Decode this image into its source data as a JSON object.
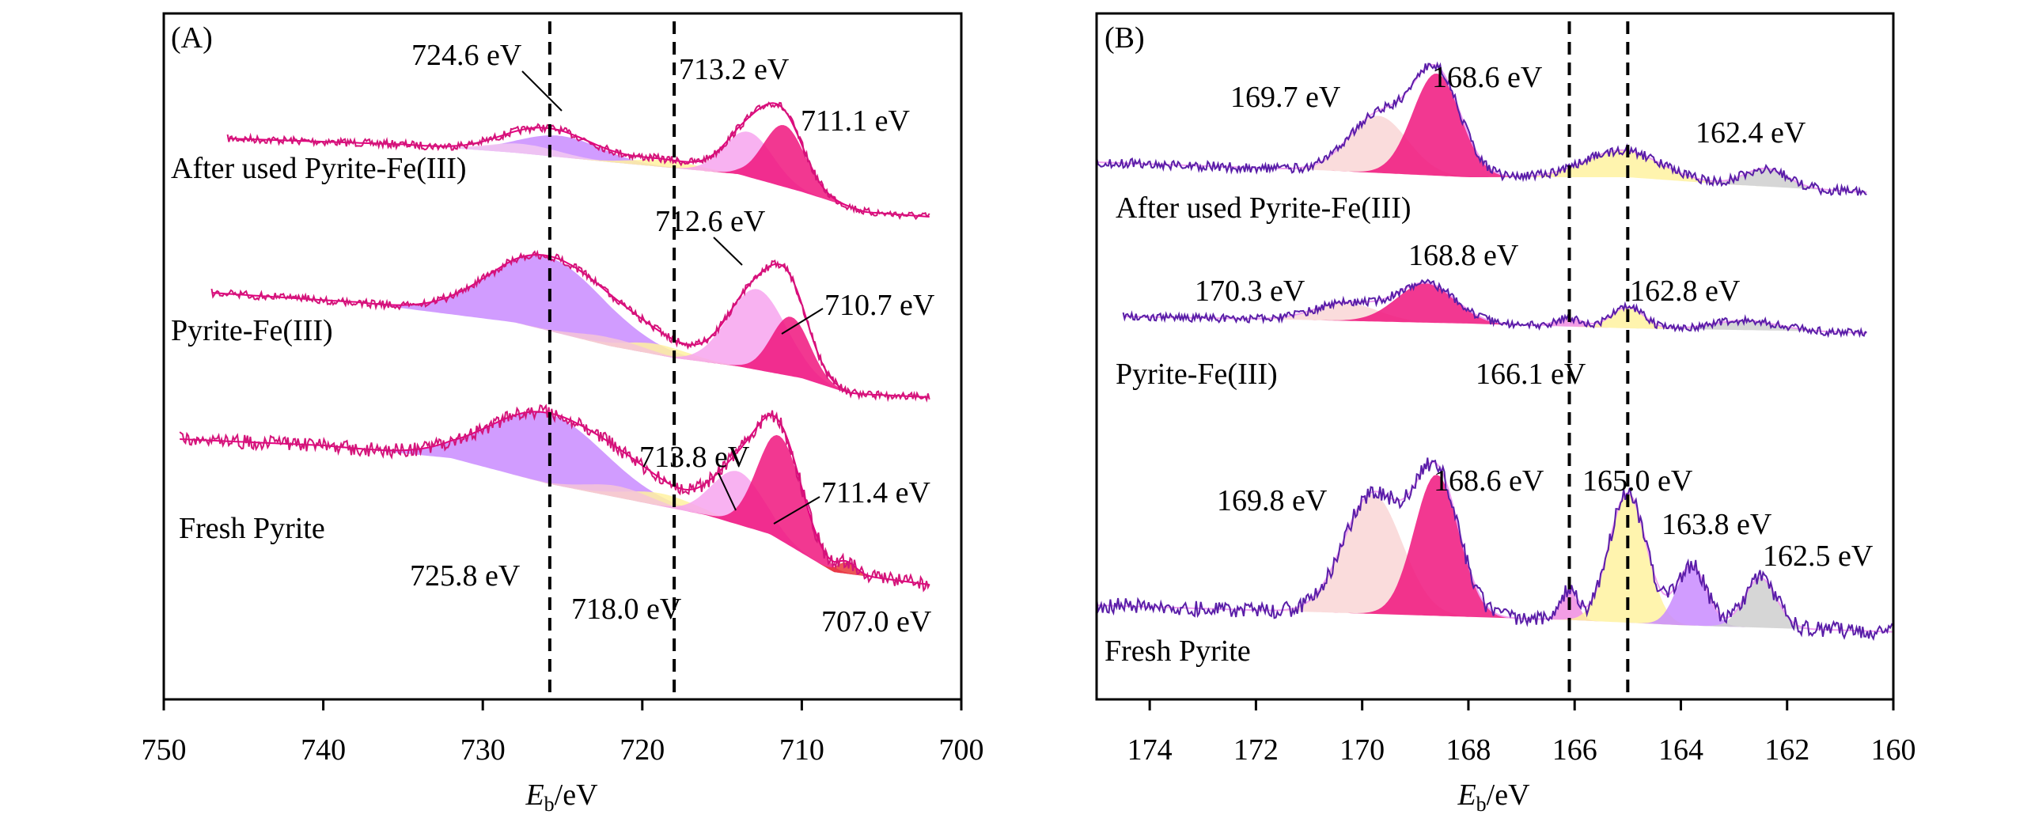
{
  "chart_data": [
    {
      "type": "line",
      "panel_label": "(A)",
      "xlabel_main": "E",
      "xlabel_sub": "b",
      "xlabel_unit": "/eV",
      "xlim": [
        750,
        700
      ],
      "x_ticks": [
        750,
        740,
        730,
        720,
        710,
        700
      ],
      "x_tick_labels": [
        "750",
        "740",
        "730",
        "720",
        "710",
        "700"
      ],
      "reference_lines_eV": [
        725.8,
        718.0
      ],
      "series": [
        {
          "name": "After used Pyrite-Fe(III)",
          "x_range": [
            746,
            702
          ],
          "baseline": [
            [
              746,
              0.0
            ],
            [
              735,
              0.05
            ],
            [
              728,
              0.12
            ],
            [
              722,
              0.2
            ],
            [
              718,
              0.25
            ],
            [
              714,
              0.3
            ],
            [
              710,
              0.45
            ],
            [
              706,
              0.62
            ],
            [
              702,
              0.66
            ]
          ],
          "components": [
            {
              "label": "",
              "center": 725.2,
              "height": 0.18,
              "width": 2.6,
              "color": "#c98bff"
            },
            {
              "label": "",
              "center": 727.5,
              "height": 0.08,
              "width": 2.2,
              "color": "#f3c9f1"
            },
            {
              "label": "",
              "center": 718.5,
              "height": 0.06,
              "width": 2.0,
              "color": "#fff2a0"
            },
            {
              "label": "",
              "center": 713.3,
              "height": 0.38,
              "width": 1.5,
              "color": "#f7a5ef"
            },
            {
              "label": "",
              "center": 711.1,
              "height": 0.52,
              "width": 1.3,
              "color": "#f0157e"
            }
          ]
        },
        {
          "name": "Pyrite-Fe(III)",
          "x_range": [
            747,
            702
          ],
          "baseline": [
            [
              747,
              0.0
            ],
            [
              738,
              0.08
            ],
            [
              728,
              0.25
            ],
            [
              722,
              0.45
            ],
            [
              718,
              0.55
            ],
            [
              714,
              0.62
            ],
            [
              710,
              0.72
            ],
            [
              707,
              0.85
            ],
            [
              702,
              0.88
            ]
          ],
          "components": [
            {
              "label": "",
              "center": 726.0,
              "height": 0.62,
              "width": 3.6,
              "color": "#c98bff"
            },
            {
              "label": "",
              "center": 719.0,
              "height": 0.09,
              "width": 2.0,
              "color": "#fff2a0"
            },
            {
              "label": "",
              "center": 722.0,
              "height": 0.07,
              "width": 2.0,
              "color": "#f6c6d7"
            },
            {
              "label": "",
              "center": 712.8,
              "height": 0.68,
              "width": 1.8,
              "color": "#f7a5ef"
            },
            {
              "label": "",
              "center": 710.7,
              "height": 0.5,
              "width": 1.2,
              "color": "#f0157e"
            }
          ]
        },
        {
          "name": "Fresh Pyrite",
          "x_range": [
            749,
            702
          ],
          "baseline": [
            [
              749,
              0.0
            ],
            [
              740,
              0.05
            ],
            [
              732,
              0.15
            ],
            [
              726,
              0.35
            ],
            [
              720,
              0.5
            ],
            [
              716,
              0.6
            ],
            [
              712,
              0.75
            ],
            [
              708,
              1.05
            ],
            [
              702,
              1.15
            ]
          ],
          "components": [
            {
              "label": "",
              "center": 726.0,
              "height": 0.55,
              "width": 3.6,
              "color": "#c98bff"
            },
            {
              "label": "",
              "center": 718.8,
              "height": 0.1,
              "width": 2.2,
              "color": "#fff2a0"
            },
            {
              "label": "",
              "center": 721.5,
              "height": 0.09,
              "width": 2.0,
              "color": "#f6c6d7"
            },
            {
              "label": "",
              "center": 714.0,
              "height": 0.42,
              "width": 1.6,
              "color": "#f7a5ef"
            },
            {
              "label": "",
              "center": 711.4,
              "height": 0.82,
              "width": 1.4,
              "color": "#f0157e"
            },
            {
              "label": "",
              "center": 707.2,
              "height": 0.09,
              "width": 0.6,
              "color": "#e83a3a"
            }
          ]
        }
      ],
      "annotations": [
        "724.6 eV",
        "713.2 eV",
        "711.1 eV",
        "712.6 eV",
        "710.7 eV",
        "713.8 eV",
        "711.4 eV",
        "725.8 eV",
        "718.0 eV",
        "707.0 eV"
      ]
    },
    {
      "type": "line",
      "panel_label": "(B)",
      "xlabel_main": "E",
      "xlabel_sub": "b",
      "xlabel_unit": "/eV",
      "xlim": [
        175,
        160
      ],
      "x_ticks": [
        174,
        172,
        170,
        168,
        166,
        164,
        162,
        160
      ],
      "x_tick_labels": [
        "174",
        "172",
        "170",
        "168",
        "166",
        "164",
        "162",
        "160"
      ],
      "reference_lines_eV": [
        166.1,
        165.0
      ],
      "series": [
        {
          "name": "After used Pyrite-Fe(III)",
          "x_range": [
            175,
            160.5
          ],
          "baseline": [
            [
              175,
              0.0
            ],
            [
              171,
              0.05
            ],
            [
              168,
              0.1
            ],
            [
              165,
              0.1
            ],
            [
              163,
              0.15
            ],
            [
              160.5,
              0.2
            ]
          ],
          "components": [
            {
              "label": "",
              "center": 169.7,
              "height": 0.38,
              "width": 0.55,
              "color": "#f9d6d6"
            },
            {
              "label": "",
              "center": 168.6,
              "height": 0.68,
              "width": 0.45,
              "color": "#f0157e"
            },
            {
              "label": "",
              "center": 165.1,
              "height": 0.18,
              "width": 0.7,
              "color": "#fff2a0"
            },
            {
              "label": "",
              "center": 162.4,
              "height": 0.12,
              "width": 0.4,
              "color": "#cfcfcf"
            }
          ]
        },
        {
          "name": "Pyrite-Fe(III)",
          "x_range": [
            174.5,
            160.5
          ],
          "baseline": [
            [
              174.5,
              0.0
            ],
            [
              171,
              0.03
            ],
            [
              168,
              0.06
            ],
            [
              165,
              0.1
            ],
            [
              162,
              0.12
            ],
            [
              160.5,
              0.14
            ]
          ],
          "components": [
            {
              "label": "",
              "center": 170.3,
              "height": 0.15,
              "width": 0.6,
              "color": "#f9d6d6"
            },
            {
              "label": "",
              "center": 168.8,
              "height": 0.33,
              "width": 0.55,
              "color": "#f0157e"
            },
            {
              "label": "",
              "center": 166.1,
              "height": 0.07,
              "width": 0.25,
              "color": "#f08ce0"
            },
            {
              "label": "",
              "center": 165.0,
              "height": 0.18,
              "width": 0.3,
              "color": "#fff2a0"
            },
            {
              "label": "",
              "center": 162.8,
              "height": 0.08,
              "width": 0.6,
              "color": "#cfcfcf"
            }
          ]
        },
        {
          "name": "Fresh Pyrite",
          "x_range": [
            175,
            160
          ],
          "baseline": [
            [
              175,
              0.0
            ],
            [
              171,
              0.04
            ],
            [
              168,
              0.07
            ],
            [
              166,
              0.09
            ],
            [
              164,
              0.12
            ],
            [
              162,
              0.14
            ],
            [
              160,
              0.16
            ]
          ],
          "components": [
            {
              "label": "",
              "center": 169.8,
              "height": 0.72,
              "width": 0.55,
              "color": "#f9d6d6"
            },
            {
              "label": "",
              "center": 168.6,
              "height": 0.85,
              "width": 0.42,
              "color": "#f0157e"
            },
            {
              "label": "",
              "center": 166.1,
              "height": 0.18,
              "width": 0.15,
              "color": "#f08ce0"
            },
            {
              "label": "",
              "center": 165.0,
              "height": 0.78,
              "width": 0.35,
              "color": "#fff2a0"
            },
            {
              "label": "",
              "center": 163.8,
              "height": 0.36,
              "width": 0.28,
              "color": "#c98bff"
            },
            {
              "label": "",
              "center": 162.5,
              "height": 0.3,
              "width": 0.3,
              "color": "#cfcfcf"
            }
          ]
        }
      ],
      "annotations": [
        "169.7 eV",
        "168.6 eV",
        "162.4 eV",
        "170.3 eV",
        "168.8 eV",
        "162.8 eV",
        "166.1 eV",
        "169.8 eV",
        "168.6 eV",
        "165.0 eV",
        "163.8 eV",
        "162.5 eV"
      ]
    }
  ]
}
